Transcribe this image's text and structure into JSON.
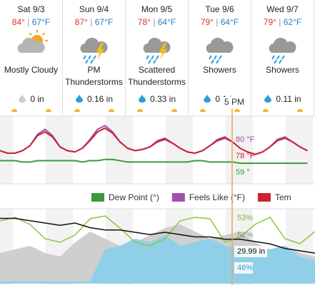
{
  "days": [
    {
      "day": "Sat 9/3",
      "high": "84°",
      "low": "67°F",
      "condition": "Mostly Cloudy",
      "precip": "0 in"
    },
    {
      "day": "Sun 9/4",
      "high": "87°",
      "low": "67°F",
      "condition": "PM Thunderstorms",
      "precip": "0.16 in"
    },
    {
      "day": "Mon 9/5",
      "high": "78°",
      "low": "64°F",
      "condition": "Scattered Thunderstorms",
      "precip": "0.33 in"
    },
    {
      "day": "Tue 9/6",
      "high": "79°",
      "low": "64°F",
      "condition": "Showers",
      "precip": "0.1 in"
    },
    {
      "day": "Wed 9/7",
      "high": "79°",
      "low": "62°F",
      "condition": "Showers",
      "precip": "0.11 in"
    }
  ],
  "now_label": "5 PM",
  "temp_chart": {
    "series": [
      {
        "name": "Dew Point (°)",
        "color": "#3c9a3c",
        "values": [
          61,
          61,
          61,
          60,
          60,
          61,
          61,
          61,
          61,
          61,
          61,
          60,
          61,
          61,
          62,
          62,
          61,
          60,
          60,
          60,
          60,
          60,
          60,
          60,
          60,
          60,
          61,
          61,
          60,
          60,
          60,
          60,
          59,
          59,
          59,
          59,
          59,
          59,
          59,
          59,
          59,
          59
        ]
      },
      {
        "name": "Feels Like (°F)",
        "color": "#a050b0",
        "values": [
          69,
          67,
          67,
          69,
          73,
          82,
          86,
          81,
          72,
          69,
          68,
          71,
          78,
          86,
          89,
          84,
          76,
          71,
          69,
          70,
          72,
          77,
          79,
          75,
          71,
          68,
          67,
          69,
          73,
          78,
          80,
          76,
          71,
          68,
          66,
          68,
          72,
          78,
          80,
          76,
          72,
          69
        ]
      },
      {
        "name": "Tem",
        "color": "#cc2233",
        "values": [
          69,
          67,
          67,
          69,
          73,
          81,
          84,
          80,
          72,
          69,
          68,
          71,
          77,
          84,
          87,
          83,
          76,
          71,
          69,
          70,
          72,
          76,
          78,
          75,
          71,
          68,
          67,
          69,
          73,
          77,
          79,
          76,
          71,
          68,
          66,
          68,
          72,
          77,
          79,
          76,
          72,
          69
        ]
      }
    ],
    "labels": [
      "80 °F",
      "78 °F",
      "59 °"
    ]
  },
  "humidity_chart": {
    "humidity": [
      85,
      90,
      80,
      60,
      55,
      65,
      88,
      92,
      75,
      55,
      50,
      60,
      85,
      90,
      88,
      55,
      62,
      80,
      90,
      60,
      53,
      70
    ],
    "cloud_cover": [
      40,
      45,
      50,
      40,
      35,
      55,
      70,
      60,
      50,
      55,
      65,
      75,
      80,
      70,
      60,
      65,
      70,
      55,
      45,
      50,
      40,
      35
    ],
    "precip_probability": [
      0,
      0,
      0,
      0,
      0,
      0,
      0,
      45,
      50,
      60,
      55,
      65,
      50,
      55,
      60,
      50,
      46,
      40,
      45,
      50,
      35,
      30
    ],
    "pressure": [
      30.08,
      30.08,
      30.07,
      30.06,
      30.05,
      30.06,
      30.04,
      30.03,
      30.03,
      30.02,
      30.01,
      30.02,
      30.01,
      30.0,
      30.0,
      29.99,
      29.99,
      29.98,
      29.97,
      29.95,
      29.94,
      29.93
    ],
    "labels": [
      "53%",
      "52%",
      "29.99 in",
      "46%"
    ]
  }
}
